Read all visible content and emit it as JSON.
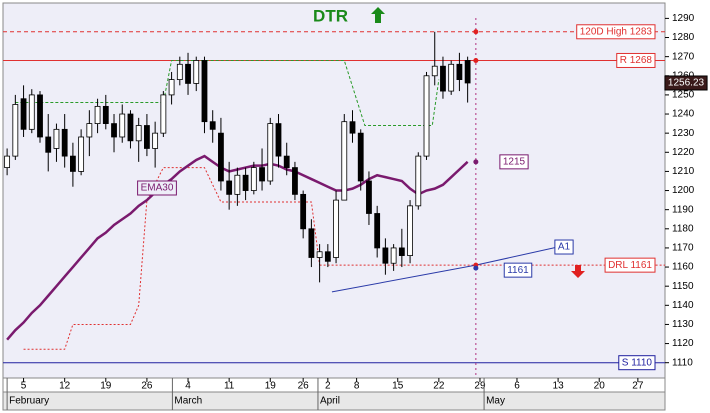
{
  "chart_data": {
    "type": "candlestick",
    "title": "DTR",
    "title_color": "#1a8a1a",
    "ylim": [
      1102,
      1297
    ],
    "yticks": [
      1110,
      1120,
      1130,
      1140,
      1150,
      1160,
      1170,
      1180,
      1190,
      1200,
      1210,
      1220,
      1230,
      1240,
      1250,
      1260,
      1270,
      1280,
      1290
    ],
    "xlim": [
      -0.5,
      80
    ],
    "xticks": [
      {
        "value": 2,
        "label": "5"
      },
      {
        "value": 7,
        "label": "12"
      },
      {
        "value": 12,
        "label": "19"
      },
      {
        "value": 17,
        "label": "26"
      },
      {
        "value": 22,
        "label": "4"
      },
      {
        "value": 27,
        "label": "11"
      },
      {
        "value": 32,
        "label": "19"
      },
      {
        "value": 36,
        "label": "26"
      },
      {
        "value": 39,
        "label": "2"
      },
      {
        "value": 42.5,
        "label": "8"
      },
      {
        "value": 47.5,
        "label": "15"
      },
      {
        "value": 52.5,
        "label": "22"
      },
      {
        "value": 57.5,
        "label": "29"
      },
      {
        "value": 62,
        "label": "6"
      },
      {
        "value": 67,
        "label": "13"
      },
      {
        "value": 72,
        "label": "20"
      },
      {
        "value": 76.7,
        "label": "27"
      }
    ],
    "months": [
      {
        "value": 0,
        "label": "February"
      },
      {
        "value": 20.1,
        "label": "March"
      },
      {
        "value": 37.8,
        "label": "April"
      },
      {
        "value": 58,
        "label": "May"
      }
    ],
    "candles": {
      "open": [
        1212,
        1218,
        1248,
        1232,
        1250,
        1228,
        1222,
        1232,
        1218,
        1210,
        1228,
        1235,
        1244,
        1235,
        1228,
        1240,
        1226,
        1234,
        1222,
        1230,
        1250,
        1258,
        1266,
        1256,
        1268,
        1236,
        1230,
        1205,
        1198,
        1208,
        1200,
        1212,
        1205,
        1235,
        1218,
        1212,
        1198,
        1180,
        1165,
        1168,
        1165,
        1195,
        1236,
        1230,
        1205,
        1188,
        1170,
        1162,
        1170,
        1166,
        1192,
        1218,
        1260,
        1265,
        1252,
        1266,
        1268
      ],
      "high": [
        1222,
        1250,
        1255,
        1253,
        1252,
        1240,
        1235,
        1240,
        1225,
        1232,
        1242,
        1248,
        1250,
        1240,
        1245,
        1242,
        1238,
        1240,
        1236,
        1252,
        1262,
        1270,
        1272,
        1270,
        1270,
        1242,
        1238,
        1215,
        1212,
        1212,
        1215,
        1222,
        1238,
        1240,
        1225,
        1215,
        1200,
        1185,
        1172,
        1172,
        1200,
        1240,
        1242,
        1232,
        1210,
        1192,
        1175,
        1172,
        1180,
        1195,
        1220,
        1262,
        1283,
        1270,
        1268,
        1272,
        1270
      ],
      "low": [
        1208,
        1216,
        1228,
        1230,
        1225,
        1210,
        1215,
        1212,
        1202,
        1208,
        1218,
        1230,
        1232,
        1220,
        1225,
        1222,
        1215,
        1218,
        1212,
        1228,
        1245,
        1255,
        1250,
        1252,
        1230,
        1225,
        1200,
        1190,
        1192,
        1195,
        1198,
        1200,
        1203,
        1212,
        1208,
        1195,
        1175,
        1160,
        1152,
        1160,
        1162,
        1195,
        1225,
        1200,
        1182,
        1165,
        1156,
        1158,
        1160,
        1162,
        1190,
        1216,
        1255,
        1248,
        1250,
        1252,
        1246
      ],
      "close": [
        1218,
        1245,
        1232,
        1250,
        1228,
        1220,
        1232,
        1218,
        1210,
        1228,
        1235,
        1244,
        1235,
        1228,
        1240,
        1226,
        1234,
        1222,
        1230,
        1250,
        1258,
        1266,
        1256,
        1268,
        1236,
        1232,
        1205,
        1198,
        1208,
        1200,
        1212,
        1205,
        1235,
        1218,
        1212,
        1198,
        1180,
        1165,
        1168,
        1163,
        1195,
        1236,
        1230,
        1205,
        1188,
        1170,
        1162,
        1170,
        1166,
        1192,
        1218,
        1260,
        1265,
        1252,
        1266,
        1258,
        1256.23
      ]
    },
    "ema": {
      "name": "EMA30",
      "color": "#7a1a6e",
      "values": [
        1122,
        1127,
        1131,
        1136,
        1140,
        1145,
        1150,
        1155,
        1160,
        1165,
        1170,
        1175,
        1178,
        1182,
        1185,
        1188,
        1192,
        1195,
        1199,
        1203,
        1206,
        1210,
        1213,
        1216,
        1218,
        1215,
        1212,
        1210,
        1211,
        1212,
        1213,
        1213,
        1214,
        1213,
        1211,
        1210,
        1208,
        1206,
        1204,
        1202,
        1200,
        1200,
        1201,
        1203,
        1206,
        1208,
        1207,
        1206,
        1205,
        1201,
        1198,
        1200,
        1201,
        1203,
        1207,
        1211,
        1215
      ]
    },
    "stop_green": {
      "color": "#2a9a2a",
      "x": [
        1,
        19,
        20,
        24,
        41,
        43.5,
        51.7,
        52.5
      ],
      "values": [
        1246,
        1246,
        1268,
        1268,
        1268,
        1234,
        1234,
        1258
      ]
    },
    "stop_red": {
      "color": "#e03030",
      "x": [
        2,
        7,
        8,
        15,
        16,
        17,
        19,
        24,
        26,
        37,
        38
      ],
      "values": [
        1117,
        1117,
        1130,
        1130,
        1140,
        1195,
        1212,
        1212,
        1194,
        1194,
        1161
      ]
    },
    "levels": [
      {
        "name": "120D High 1283",
        "value": 1283,
        "color": "#e03030",
        "style": "dashed",
        "from": -0.5
      },
      {
        "name": "R 1268",
        "value": 1268,
        "color": "#e03030",
        "style": "solid",
        "from": -0.5
      },
      {
        "name": "DRL 1161",
        "value": 1161,
        "color": "#e03030",
        "style": "dotted",
        "from": 38
      },
      {
        "name": "S 1110",
        "value": 1110,
        "color": "#2020a0",
        "style": "solid",
        "from": -0.5
      }
    ],
    "trendline": {
      "name": "A1",
      "color": "#2a3aa8",
      "x": [
        39.5,
        57,
        67.5
      ],
      "values": [
        1147,
        1161,
        1171
      ]
    },
    "cycle_x": 57
  }
}
